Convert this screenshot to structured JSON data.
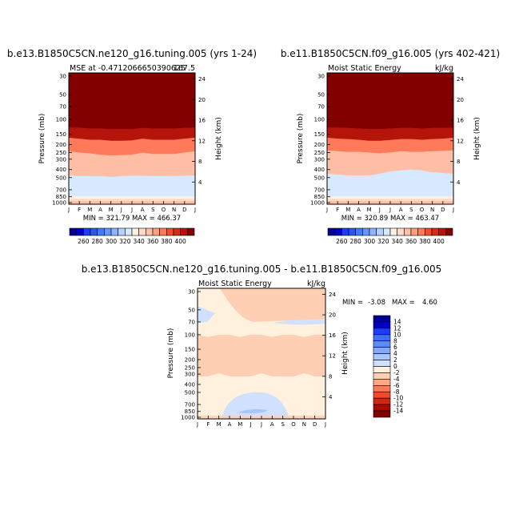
{
  "page": {
    "background": "#ffffff"
  },
  "palettes": {
    "abs": [
      "#000096",
      "#0000c8",
      "#1e3cff",
      "#285ae6",
      "#3c7cff",
      "#6496ff",
      "#8cb4ff",
      "#b4d2ff",
      "#d7e9ff",
      "#fff1de",
      "#ffdac8",
      "#ffbfa6",
      "#ff9f7d",
      "#ff7a5a",
      "#f04d2c",
      "#d82c14",
      "#b4140a",
      "#820000"
    ],
    "diff": [
      "#000096",
      "#0000c8",
      "#1e3cff",
      "#3c6eff",
      "#5a8cff",
      "#82a8ff",
      "#a8c6ff",
      "#cfe1ff",
      "#fff1de",
      "#ffcfb4",
      "#ffa882",
      "#ff7a55",
      "#f04a28",
      "#d22812",
      "#aa0a00",
      "#820000"
    ]
  },
  "chart_data": [
    {
      "type": "heatmap",
      "title": "b.e13.B1850C5CN.ne120_g16.tuning.005 (yrs 1-24)",
      "subtitle_left": "MSE at -0.4712066650390625",
      "subtitle_right": "167.5",
      "xlabel": "",
      "ylabel": "Pressure (mb)",
      "ylabel_right": "Height (km)",
      "months": [
        "J",
        "F",
        "M",
        "A",
        "M",
        "J",
        "J",
        "A",
        "S",
        "O",
        "N",
        "D",
        "J"
      ],
      "pressure_ticks": [
        "30",
        "50",
        "70",
        "100",
        "150",
        "200",
        "250",
        "300",
        "400",
        "500",
        "700",
        "850",
        "1000"
      ],
      "height_ticks": [
        "24",
        "20",
        "16",
        "12",
        "8",
        "4"
      ],
      "stats": "MIN = 321.79  MAX = 466.37",
      "colorbar_labels": [
        "260",
        "280",
        "300",
        "320",
        "340",
        "360",
        "380",
        "400"
      ],
      "band_levels": [
        {
          "level": 400,
          "pressure": [
            125,
            125,
            128,
            128,
            130,
            130,
            130,
            126,
            128,
            128,
            128,
            126,
            125
          ]
        },
        {
          "level": 380,
          "pressure": [
            165,
            170,
            175,
            175,
            180,
            180,
            178,
            170,
            175,
            175,
            175,
            170,
            165
          ]
        },
        {
          "level": 360,
          "pressure": [
            240,
            250,
            255,
            265,
            270,
            268,
            265,
            250,
            260,
            260,
            260,
            250,
            240
          ]
        },
        {
          "level": 340,
          "pressure": [
            470,
            480,
            480,
            480,
            490,
            480,
            475,
            475,
            480,
            480,
            480,
            475,
            470
          ]
        },
        {
          "level": 320,
          "pressure": [
            840,
            840,
            840,
            840,
            840,
            840,
            840,
            840,
            840,
            840,
            840,
            840,
            840
          ]
        }
      ]
    },
    {
      "type": "heatmap",
      "title": "b.e11.B1850C5CN.f09_g16.005 (yrs 402-421)",
      "subtitle_left": "Moist Static Energy",
      "subtitle_right": "kJ/kg",
      "xlabel": "",
      "ylabel": "Pressure (mb)",
      "ylabel_right": "Height (km)",
      "months": [
        "J",
        "F",
        "M",
        "A",
        "M",
        "J",
        "J",
        "A",
        "S",
        "O",
        "N",
        "D",
        "J"
      ],
      "pressure_ticks": [
        "30",
        "50",
        "70",
        "100",
        "150",
        "200",
        "250",
        "300",
        "400",
        "500",
        "700",
        "850",
        "1000"
      ],
      "height_ticks": [
        "24",
        "20",
        "16",
        "12",
        "8",
        "4"
      ],
      "stats": "MIN = 320.89  MAX = 463.47",
      "colorbar_labels": [
        "260",
        "280",
        "300",
        "320",
        "340",
        "360",
        "380",
        "400"
      ],
      "band_levels": [
        {
          "level": 400,
          "pressure": [
            125,
            125,
            126,
            128,
            130,
            130,
            128,
            126,
            126,
            128,
            126,
            126,
            125
          ]
        },
        {
          "level": 380,
          "pressure": [
            165,
            170,
            172,
            175,
            180,
            180,
            176,
            172,
            172,
            175,
            172,
            170,
            165
          ]
        },
        {
          "level": 360,
          "pressure": [
            235,
            240,
            245,
            245,
            250,
            255,
            250,
            240,
            245,
            245,
            240,
            238,
            235
          ]
        },
        {
          "level": 340,
          "pressure": [
            450,
            460,
            470,
            470,
            470,
            450,
            420,
            410,
            400,
            410,
            430,
            440,
            450
          ]
        },
        {
          "level": 320,
          "pressure": [
            840,
            840,
            840,
            840,
            840,
            840,
            840,
            840,
            840,
            840,
            840,
            840,
            840
          ]
        }
      ]
    },
    {
      "type": "heatmap",
      "title": "b.e13.B1850C5CN.ne120_g16.tuning.005 - b.e11.B1850C5CN.f09_g16.005",
      "subtitle_left": "Moist Static Energy",
      "subtitle_right": "kJ/kg",
      "xlabel": "",
      "ylabel": "Pressure (mb)",
      "ylabel_right": "Height (km)",
      "months": [
        "J",
        "F",
        "M",
        "A",
        "M",
        "J",
        "J",
        "A",
        "S",
        "O",
        "N",
        "D",
        "J"
      ],
      "pressure_ticks": [
        "30",
        "50",
        "70",
        "100",
        "150",
        "200",
        "250",
        "300",
        "400",
        "500",
        "700",
        "850",
        "1000"
      ],
      "height_ticks": [
        "24",
        "20",
        "16",
        "12",
        "8",
        "4"
      ],
      "stats_label": "MIN =",
      "stats_min": "-3.08",
      "stats_max_label": "MAX =",
      "stats_max": "4.60",
      "colorbar_labels": [
        "14",
        "12",
        "10",
        "8",
        "6",
        "4",
        "2",
        "0",
        "-2",
        "-4",
        "-6",
        "-8",
        "-10",
        "-12",
        "-14"
      ],
      "diff_range": [
        -3.08,
        4.6
      ]
    }
  ]
}
